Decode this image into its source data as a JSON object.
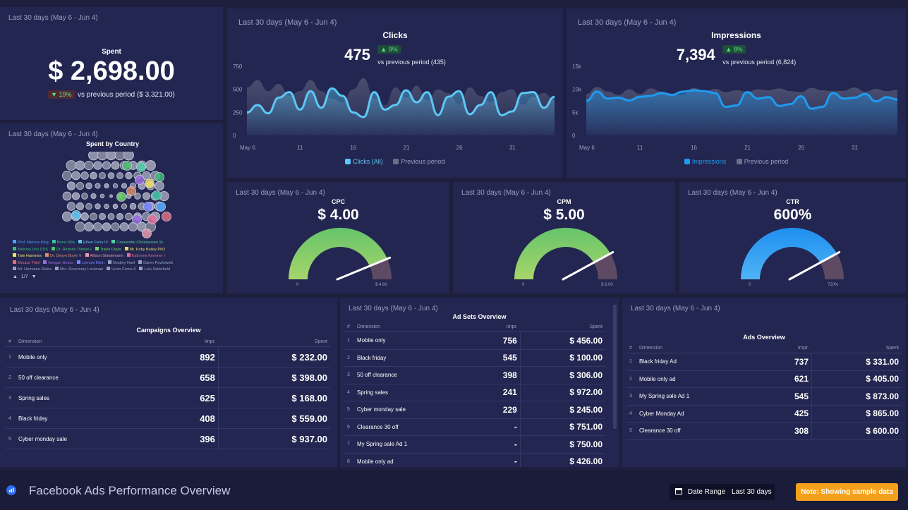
{
  "period_label": "Last 30 days (May 6 - Jun 4)",
  "spent": {
    "title": "Spent",
    "value": "$ 2,698.00",
    "change": "▼ 19%",
    "vs": "vs previous period ($ 3,321.00)"
  },
  "country": {
    "title": "Spent by Country",
    "legend": [
      "Prof. Marcus King",
      "Bonis Rita",
      "Ethen Ferry IV",
      "Cassandre Christiansen Sr.",
      "Melvina Von DDS",
      "Dr. Ricardo Tillman I",
      "Travis Davis",
      "Mr. Koby Bailey PhD",
      "Tate Hammes",
      "Dr. Devyn Boyle V",
      "Allison Stiedemann",
      "Kathryne Kemmer I",
      "Elouise Thiel",
      "Keegan Bosco",
      "Lemuel Klein",
      "Destiny Huel",
      "Daren Powlowski",
      "Mr. Hermann Skiles",
      "Mrs. Rosemary Lockman",
      "Uriah Crona II",
      "Lulu Satterfield"
    ],
    "legend_colors": [
      "#4aa3ff",
      "#38c0a0",
      "#5bc6f0",
      "#4fd1a5",
      "#3fb97a",
      "#4cc070",
      "#6fd36f",
      "#e3d96b",
      "#f2e26b",
      "#d88f6b",
      "#e89ab0",
      "#e06f9a",
      "#e16f86",
      "#9b6fe0",
      "#7a88ff",
      "#9aa0c2",
      "#9aa0c2",
      "#9aa0c2",
      "#9aa0c2",
      "#9aa0c2",
      "#9aa0c2"
    ],
    "pager": "1/7"
  },
  "clicks": {
    "title": "Clicks",
    "value": "475",
    "change": "▲ 9%",
    "vs": "vs previous period (435)",
    "legend_current": "Clicks (All)",
    "legend_prev": "Previous period"
  },
  "impressions": {
    "title": "Impressions",
    "value": "7,394",
    "change": "▲ 8%",
    "vs": "vs previous period (6,824)",
    "legend_current": "Impressions",
    "legend_prev": "Previous period"
  },
  "chart_data": [
    {
      "type": "area",
      "title": "Clicks",
      "categories": [
        "May 6",
        "May 7",
        "May 8",
        "May 9",
        "May 10",
        "May 11",
        "May 12",
        "May 13",
        "May 14",
        "May 15",
        "May 16",
        "May 17",
        "May 18",
        "May 19",
        "May 20",
        "May 21",
        "May 22",
        "May 23",
        "May 24",
        "May 25",
        "May 26",
        "May 27",
        "May 28",
        "May 29",
        "May 30",
        "May 31",
        "Jun 1",
        "Jun 2",
        "Jun 3",
        "Jun 4"
      ],
      "xticks": [
        "May 6",
        "11",
        "16",
        "21",
        "26",
        "31"
      ],
      "yticks": [
        "0",
        "250",
        "500",
        "750"
      ],
      "ylim": [
        0,
        750
      ],
      "series": [
        {
          "name": "Clicks (All)",
          "color": "#5bc8f5",
          "values": [
            250,
            330,
            240,
            410,
            470,
            280,
            480,
            300,
            510,
            430,
            250,
            200,
            470,
            280,
            330,
            490,
            360,
            470,
            220,
            420,
            480,
            230,
            330,
            470,
            220,
            260,
            460,
            470,
            300,
            420
          ]
        },
        {
          "name": "Previous period",
          "color": "#6b6f8a",
          "values": [
            520,
            600,
            480,
            560,
            430,
            480,
            600,
            480,
            400,
            360,
            500,
            620,
            400,
            330,
            520,
            410,
            540,
            380,
            500,
            460,
            340,
            520,
            430,
            360,
            470,
            500,
            330,
            420,
            460,
            380
          ]
        }
      ]
    },
    {
      "type": "area",
      "title": "Impressions",
      "categories": [
        "May 6",
        "May 7",
        "May 8",
        "May 9",
        "May 10",
        "May 11",
        "May 12",
        "May 13",
        "May 14",
        "May 15",
        "May 16",
        "May 17",
        "May 18",
        "May 19",
        "May 20",
        "May 21",
        "May 22",
        "May 23",
        "May 24",
        "May 25",
        "May 26",
        "May 27",
        "May 28",
        "May 29",
        "May 30",
        "May 31",
        "Jun 1",
        "Jun 2",
        "Jun 3",
        "Jun 4"
      ],
      "xticks": [
        "May 6",
        "11",
        "16",
        "21",
        "26",
        "31"
      ],
      "yticks": [
        "0",
        "5k",
        "10k",
        "15k"
      ],
      "ylim": [
        0,
        15000
      ],
      "series": [
        {
          "name": "Impressions",
          "color": "#1e9bf0",
          "values": [
            7500,
            9500,
            8000,
            8200,
            7600,
            8400,
            8600,
            9200,
            8800,
            9500,
            9800,
            9600,
            9200,
            6200,
            6500,
            9400,
            8000,
            8300,
            6400,
            6800,
            8500,
            5800,
            6200,
            9200,
            8000,
            8200,
            9000,
            7400,
            8300,
            7800
          ]
        },
        {
          "name": "Previous period",
          "color": "#6b6f8a",
          "values": [
            9000,
            10500,
            9500,
            8800,
            10000,
            9000,
            10200,
            9500,
            9000,
            8800,
            10300,
            9600,
            10100,
            9400,
            9800,
            9500,
            10000,
            9800,
            10200,
            9600,
            9400,
            10300,
            9800,
            9600,
            9700,
            10400,
            9500,
            10100,
            9600,
            9900
          ]
        }
      ]
    },
    {
      "type": "gauge",
      "title": "CPC",
      "value": 4.0,
      "min_label": "0",
      "max_label": "$ 4.60",
      "max": 4.6
    },
    {
      "type": "gauge",
      "title": "CPM",
      "value": 5.0,
      "min_label": "0",
      "max_label": "$ 6.00",
      "max": 6.0
    },
    {
      "type": "gauge",
      "title": "CTR",
      "value": 600,
      "min_label": "0",
      "max_label": "720%",
      "max": 720
    }
  ],
  "cpc": {
    "title": "CPC",
    "value": "$ 4.00",
    "min": "0",
    "max": "$ 4.60"
  },
  "cpm": {
    "title": "CPM",
    "value": "$ 5.00",
    "min": "0",
    "max": "$ 6.00"
  },
  "ctr": {
    "title": "CTR",
    "value": "600%",
    "min": "0",
    "max": "720%"
  },
  "campaigns": {
    "title": "Campaigns Overview",
    "headers": [
      "#",
      "Dimension",
      "Impr.",
      "Spent"
    ],
    "rows": [
      {
        "n": "1",
        "dim": "Mobile only",
        "impr": "892",
        "spent": "$ 232.00"
      },
      {
        "n": "2",
        "dim": "50 off clearance",
        "impr": "658",
        "spent": "$ 398.00"
      },
      {
        "n": "3",
        "dim": "Spring sales",
        "impr": "625",
        "spent": "$ 168.00"
      },
      {
        "n": "4",
        "dim": "Black friday",
        "impr": "408",
        "spent": "$ 559.00"
      },
      {
        "n": "5",
        "dim": "Cyber monday sale",
        "impr": "396",
        "spent": "$ 937.00"
      }
    ]
  },
  "adsets": {
    "title": "Ad Sets Overview",
    "headers": [
      "#",
      "Dimension",
      "Impr.",
      "Spent"
    ],
    "rows": [
      {
        "n": "1",
        "dim": "Mobile only",
        "impr": "756",
        "spent": "$ 456.00"
      },
      {
        "n": "2",
        "dim": "Black friday",
        "impr": "545",
        "spent": "$ 100.00"
      },
      {
        "n": "3",
        "dim": "50 off clearance",
        "impr": "398",
        "spent": "$ 306.00"
      },
      {
        "n": "4",
        "dim": "Spring sales",
        "impr": "241",
        "spent": "$ 972.00"
      },
      {
        "n": "5",
        "dim": "Cyber monday sale",
        "impr": "229",
        "spent": "$ 245.00"
      },
      {
        "n": "6",
        "dim": "Clearance 30 off",
        "impr": "-",
        "spent": "$ 751.00"
      },
      {
        "n": "7",
        "dim": "My Spring sale Ad 1",
        "impr": "-",
        "spent": "$ 750.00"
      },
      {
        "n": "8",
        "dim": "Mobile only ad",
        "impr": "-",
        "spent": "$ 426.00"
      }
    ]
  },
  "ads": {
    "title": "Ads Overview",
    "headers": [
      "#",
      "Dimension",
      "Impr.",
      "Spent"
    ],
    "rows": [
      {
        "n": "1",
        "dim": "Black friday Ad",
        "impr": "737",
        "spent": "$ 331.00"
      },
      {
        "n": "2",
        "dim": "Mobile only ad",
        "impr": "621",
        "spent": "$ 405.00"
      },
      {
        "n": "3",
        "dim": "My Spring sale Ad 1",
        "impr": "545",
        "spent": "$ 873.00"
      },
      {
        "n": "4",
        "dim": "Cyber Monday Ad",
        "impr": "425",
        "spent": "$ 865.00"
      },
      {
        "n": "5",
        "dim": "Clearance 30 off",
        "impr": "308",
        "spent": "$ 600.00"
      }
    ]
  },
  "footer": {
    "title": "Facebook Ads Performance Overview",
    "date_range_label": "Date Range",
    "date_range_value": "Last 30 days",
    "note": "Note: Showing sample data"
  },
  "colors": {
    "accent": "#5bc8f5",
    "impressions": "#1e9bf0",
    "gauge_green": "#7fce6c",
    "gauge_red": "#6a4a5c",
    "note_bg": "#f5a01a"
  }
}
